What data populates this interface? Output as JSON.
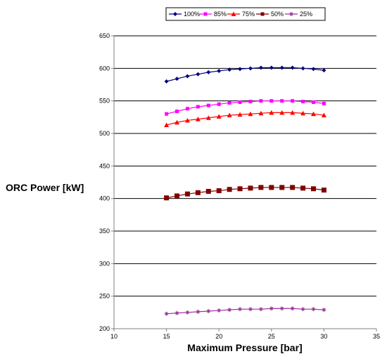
{
  "chart_data": {
    "type": "line",
    "xlabel": "Maximum Pressure [bar]",
    "ylabel": "ORC Power [kW]",
    "xlim": [
      10,
      35
    ],
    "ylim": [
      200,
      650
    ],
    "xticks": [
      10,
      15,
      20,
      25,
      30,
      35
    ],
    "yticks": [
      200,
      250,
      300,
      350,
      400,
      450,
      500,
      550,
      600,
      650
    ],
    "grid": "horizontal",
    "legend_position": "top",
    "x": [
      15,
      16,
      17,
      18,
      19,
      20,
      21,
      22,
      23,
      24,
      25,
      26,
      27,
      28,
      29,
      30
    ],
    "series": [
      {
        "name": "100%",
        "color": "#000080",
        "marker": "diamond",
        "values": [
          580,
          584,
          588,
          591,
          594,
          596,
          598,
          599,
          600,
          601,
          601,
          601,
          601,
          600,
          599,
          597
        ]
      },
      {
        "name": "85%",
        "color": "#ff00ff",
        "marker": "square",
        "values": [
          530,
          534,
          538,
          541,
          543,
          545,
          547,
          548,
          549,
          550,
          550,
          550,
          550,
          549,
          548,
          546
        ]
      },
      {
        "name": "75%",
        "color": "#ff0000",
        "marker": "triangle",
        "values": [
          513,
          517,
          520,
          522,
          524,
          526,
          528,
          529,
          530,
          531,
          532,
          532,
          532,
          531,
          530,
          528
        ]
      },
      {
        "name": "50%",
        "color": "#800000",
        "marker": "bigsquare",
        "values": [
          401,
          404,
          407,
          409,
          411,
          412,
          414,
          415,
          416,
          417,
          417,
          417,
          417,
          416,
          415,
          413
        ]
      },
      {
        "name": "25%",
        "color": "#993399",
        "marker": "star",
        "values": [
          223,
          224,
          225,
          226,
          227,
          228,
          229,
          230,
          230,
          230,
          231,
          231,
          231,
          230,
          230,
          229
        ]
      }
    ]
  }
}
